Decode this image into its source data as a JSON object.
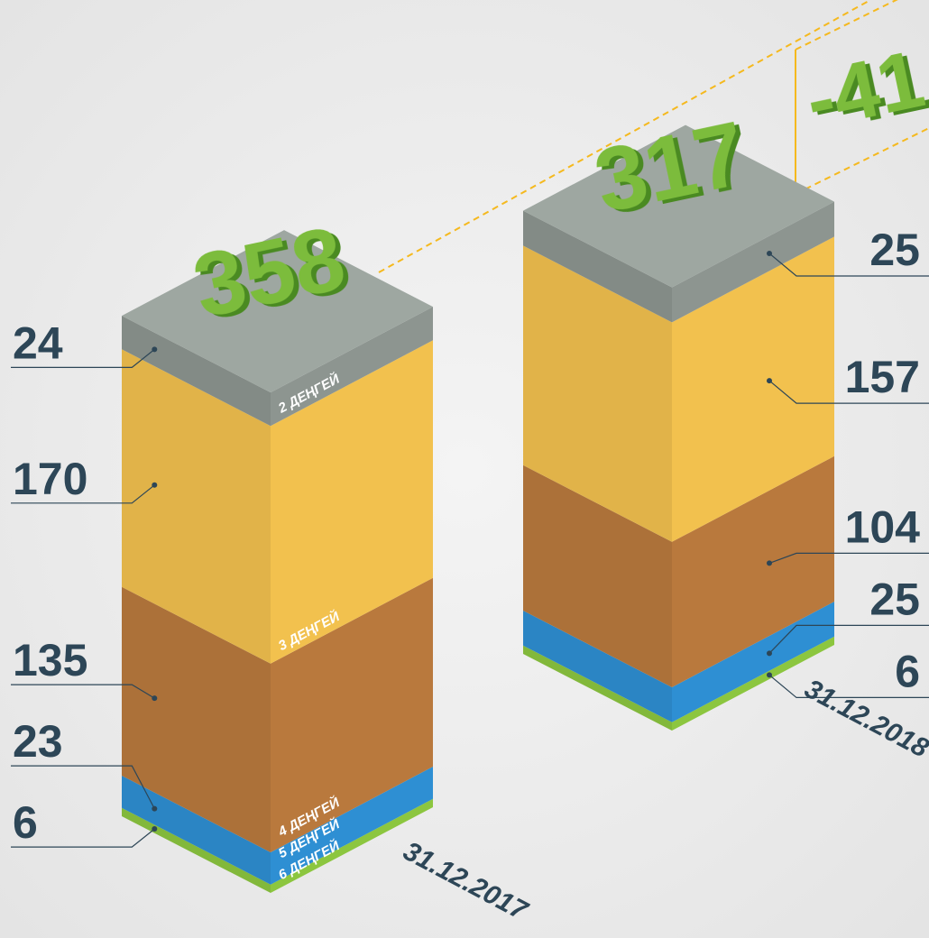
{
  "chart_data": {
    "type": "stacked-isometric-bar",
    "categories": [
      "31.12.2017",
      "31.12.2018"
    ],
    "totals": [
      358,
      317
    ],
    "change": -41,
    "series": [
      {
        "name": "2 ДЕҢГЕЙ",
        "color": "#8d9590",
        "values": [
          24,
          25
        ]
      },
      {
        "name": "3 ДЕҢГЕЙ",
        "color": "#f2c14e",
        "values": [
          170,
          157
        ]
      },
      {
        "name": "4 ДЕҢГЕЙ",
        "color": "#b9793d",
        "values": [
          135,
          104
        ]
      },
      {
        "name": "5 ДЕҢГЕЙ",
        "color": "#2e8fd3",
        "values": [
          23,
          25
        ]
      },
      {
        "name": "6 ДЕҢГЕЙ",
        "color": "#8cc63f",
        "values": [
          6,
          6
        ]
      }
    ]
  }
}
